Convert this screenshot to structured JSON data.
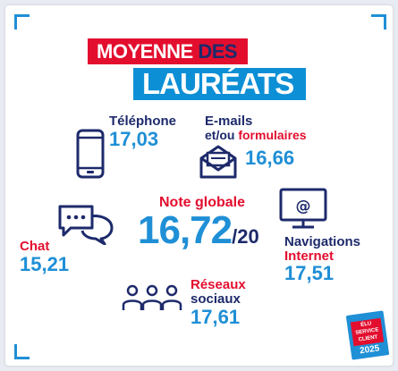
{
  "title": {
    "line1_word1": "MOYENNE",
    "line1_word2": "DES",
    "line2": "LAURÉATS"
  },
  "telephone": {
    "label": "Téléphone",
    "value": "17,03",
    "icon": "smartphone-icon"
  },
  "emails": {
    "label_line1": "E-mails",
    "label_line2_prefix": "et/ou",
    "label_line2_suffix": "formulaires",
    "value": "16,66",
    "icon": "envelope-icon"
  },
  "global": {
    "label": "Note globale",
    "value": "16,72",
    "suffix": "/20"
  },
  "chat": {
    "label": "Chat",
    "value": "15,21",
    "icon": "chat-bubbles-icon"
  },
  "navigations": {
    "label_line1": "Navigations",
    "label_line2": "Internet",
    "value": "17,51",
    "icon": "monitor-at-icon"
  },
  "reseaux": {
    "label_line1": "Réseaux",
    "label_line2": "sociaux",
    "value": "17,61",
    "icon": "people-group-icon"
  },
  "logo": {
    "line1": "ÉLU",
    "line2": "SERVICE",
    "line3": "CLIENT",
    "year": "2025"
  },
  "colors": {
    "red": "#e30e2e",
    "navy": "#1d2a6b",
    "blue": "#1f8fd6",
    "banner_blue": "#0d8fd6"
  }
}
